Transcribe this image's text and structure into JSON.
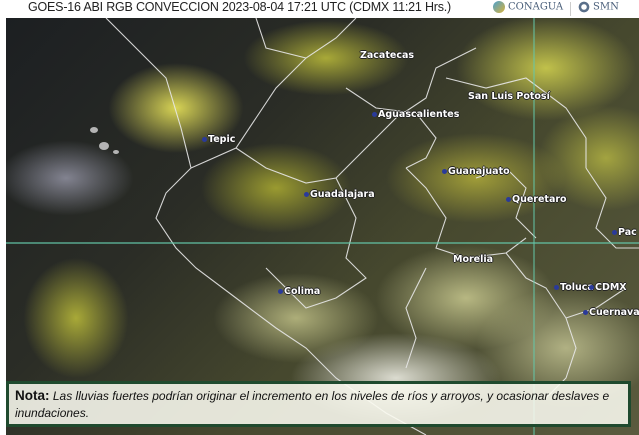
{
  "header": {
    "title": "GOES-16 ABI RGB CONVECCION 2023-08-04 17:21 UTC (CDMX  11:21 Hrs.)",
    "logos": [
      "CONAGUA",
      "SMN"
    ]
  },
  "map": {
    "cities": [
      {
        "name": "Zacatecas"
      },
      {
        "name": "San Luis Potosí"
      },
      {
        "name": "Aguascalientes"
      },
      {
        "name": "Tepic"
      },
      {
        "name": "Guanajuato"
      },
      {
        "name": "Guadalajara"
      },
      {
        "name": "Queretaro"
      },
      {
        "name": "Pac"
      },
      {
        "name": "Morelia"
      },
      {
        "name": "Colima"
      },
      {
        "name": "Toluca"
      },
      {
        "name": "CDMX"
      },
      {
        "name": "Cuernavaca"
      }
    ]
  },
  "note": {
    "label": "Nota:",
    "text": "Las lluvias fuertes podrían originar el incremento en los niveles de ríos y arroyos, y ocasionar deslaves e inundaciones."
  }
}
